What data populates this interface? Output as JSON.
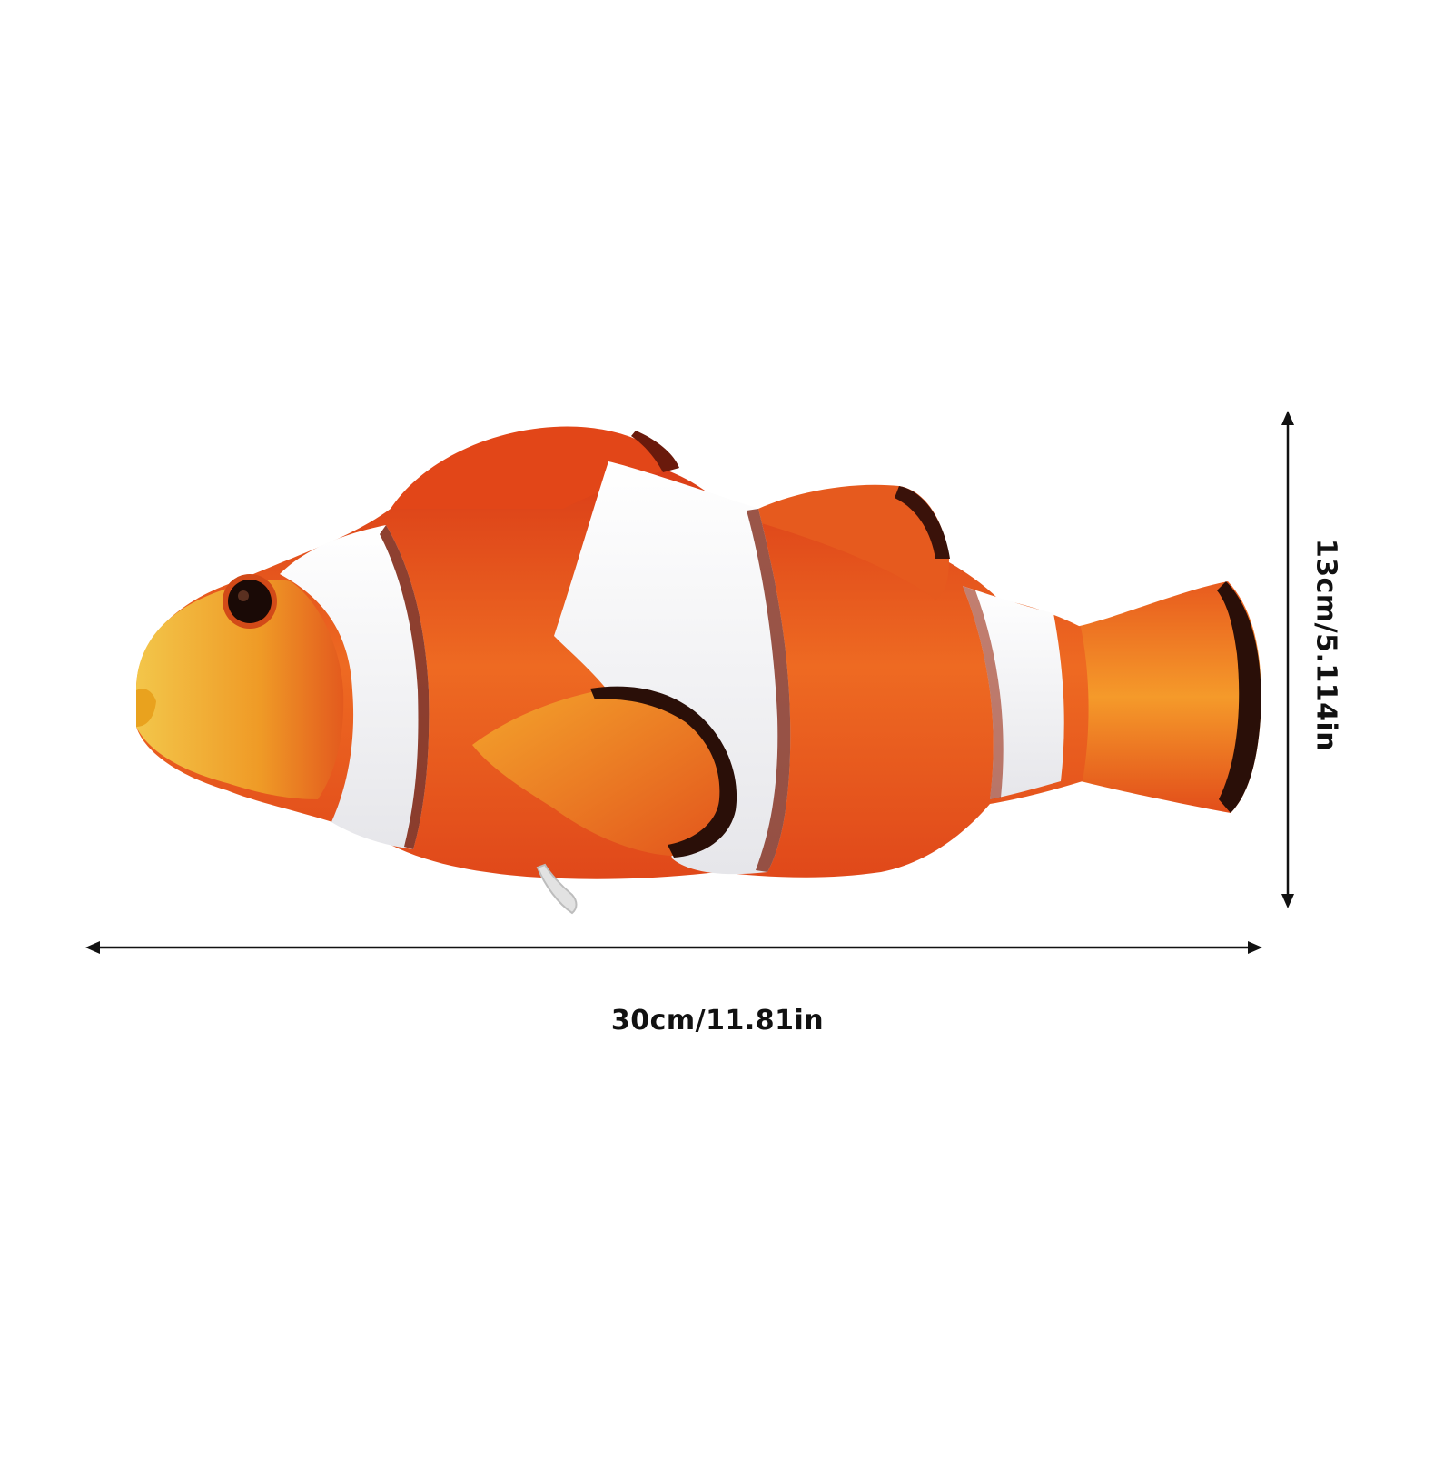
{
  "dimensions": {
    "width_label": "30cm/11.81in",
    "height_label": "13cm/5.114in"
  },
  "product": {
    "icon": "clownfish-plush-toy"
  },
  "colors": {
    "background": "#ffffff",
    "body_orange": "#e8501c",
    "stripe_white": "#f4f4f4",
    "fin_dark": "#2a0f08",
    "face_yellow": "#f2b52a",
    "arrow": "#111111"
  }
}
